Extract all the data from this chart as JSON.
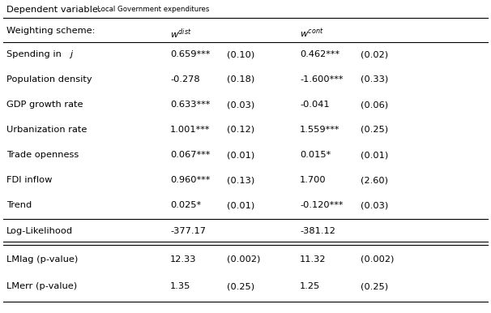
{
  "title_main": "Dependent variable:",
  "title_sub": "Local Government expenditures",
  "col_header_left": "Weighting scheme:",
  "rows": [
    {
      "label": "Spending in $j$",
      "w1_coef": "0.659***",
      "w1_se": "(0.10)",
      "w2_coef": "0.462***",
      "w2_se": "(0.02)"
    },
    {
      "label": "Population density",
      "w1_coef": "-0.278",
      "w1_se": "(0.18)",
      "w2_coef": "-1.600***",
      "w2_se": "(0.33)"
    },
    {
      "label": "GDP growth rate",
      "w1_coef": "0.633***",
      "w1_se": "(0.03)",
      "w2_coef": "-0.041",
      "w2_se": "(0.06)"
    },
    {
      "label": "Urbanization rate",
      "w1_coef": "1.001***",
      "w1_se": "(0.12)",
      "w2_coef": "1.559***",
      "w2_se": "(0.25)"
    },
    {
      "label": "Trade openness",
      "w1_coef": "0.067***",
      "w1_se": "(0.01)",
      "w2_coef": "0.015*",
      "w2_se": "(0.01)"
    },
    {
      "label": "FDI inflow",
      "w1_coef": "0.960***",
      "w1_se": "(0.13)",
      "w2_coef": "1.700",
      "w2_se": "(2.60)"
    },
    {
      "label": "Trend",
      "w1_coef": "0.025*",
      "w1_se": "(0.01)",
      "w2_coef": "-0.120***",
      "w2_se": "(0.03)"
    }
  ],
  "stat_rows": [
    {
      "label": "Log-Likelihood",
      "w1_val": "-377.17",
      "w1_se": "",
      "w2_val": "-381.12",
      "w2_se": "",
      "double_line_after": false,
      "single_line_after": true
    },
    {
      "label": "LMlag (p-value)",
      "w1_val": "12.33",
      "w1_se": "(0.002)",
      "w2_val": "11.32",
      "w2_se": "(0.002)",
      "double_line_after": false,
      "single_line_after": false
    },
    {
      "label": "LMerr (p-value)",
      "w1_val": "1.35",
      "w1_se": "(0.25)",
      "w2_val": "1.25",
      "w2_se": "(0.25)",
      "double_line_after": false,
      "single_line_after": false
    }
  ],
  "bg_color": "#ffffff",
  "text_color": "#000000",
  "font_size": 8.2
}
